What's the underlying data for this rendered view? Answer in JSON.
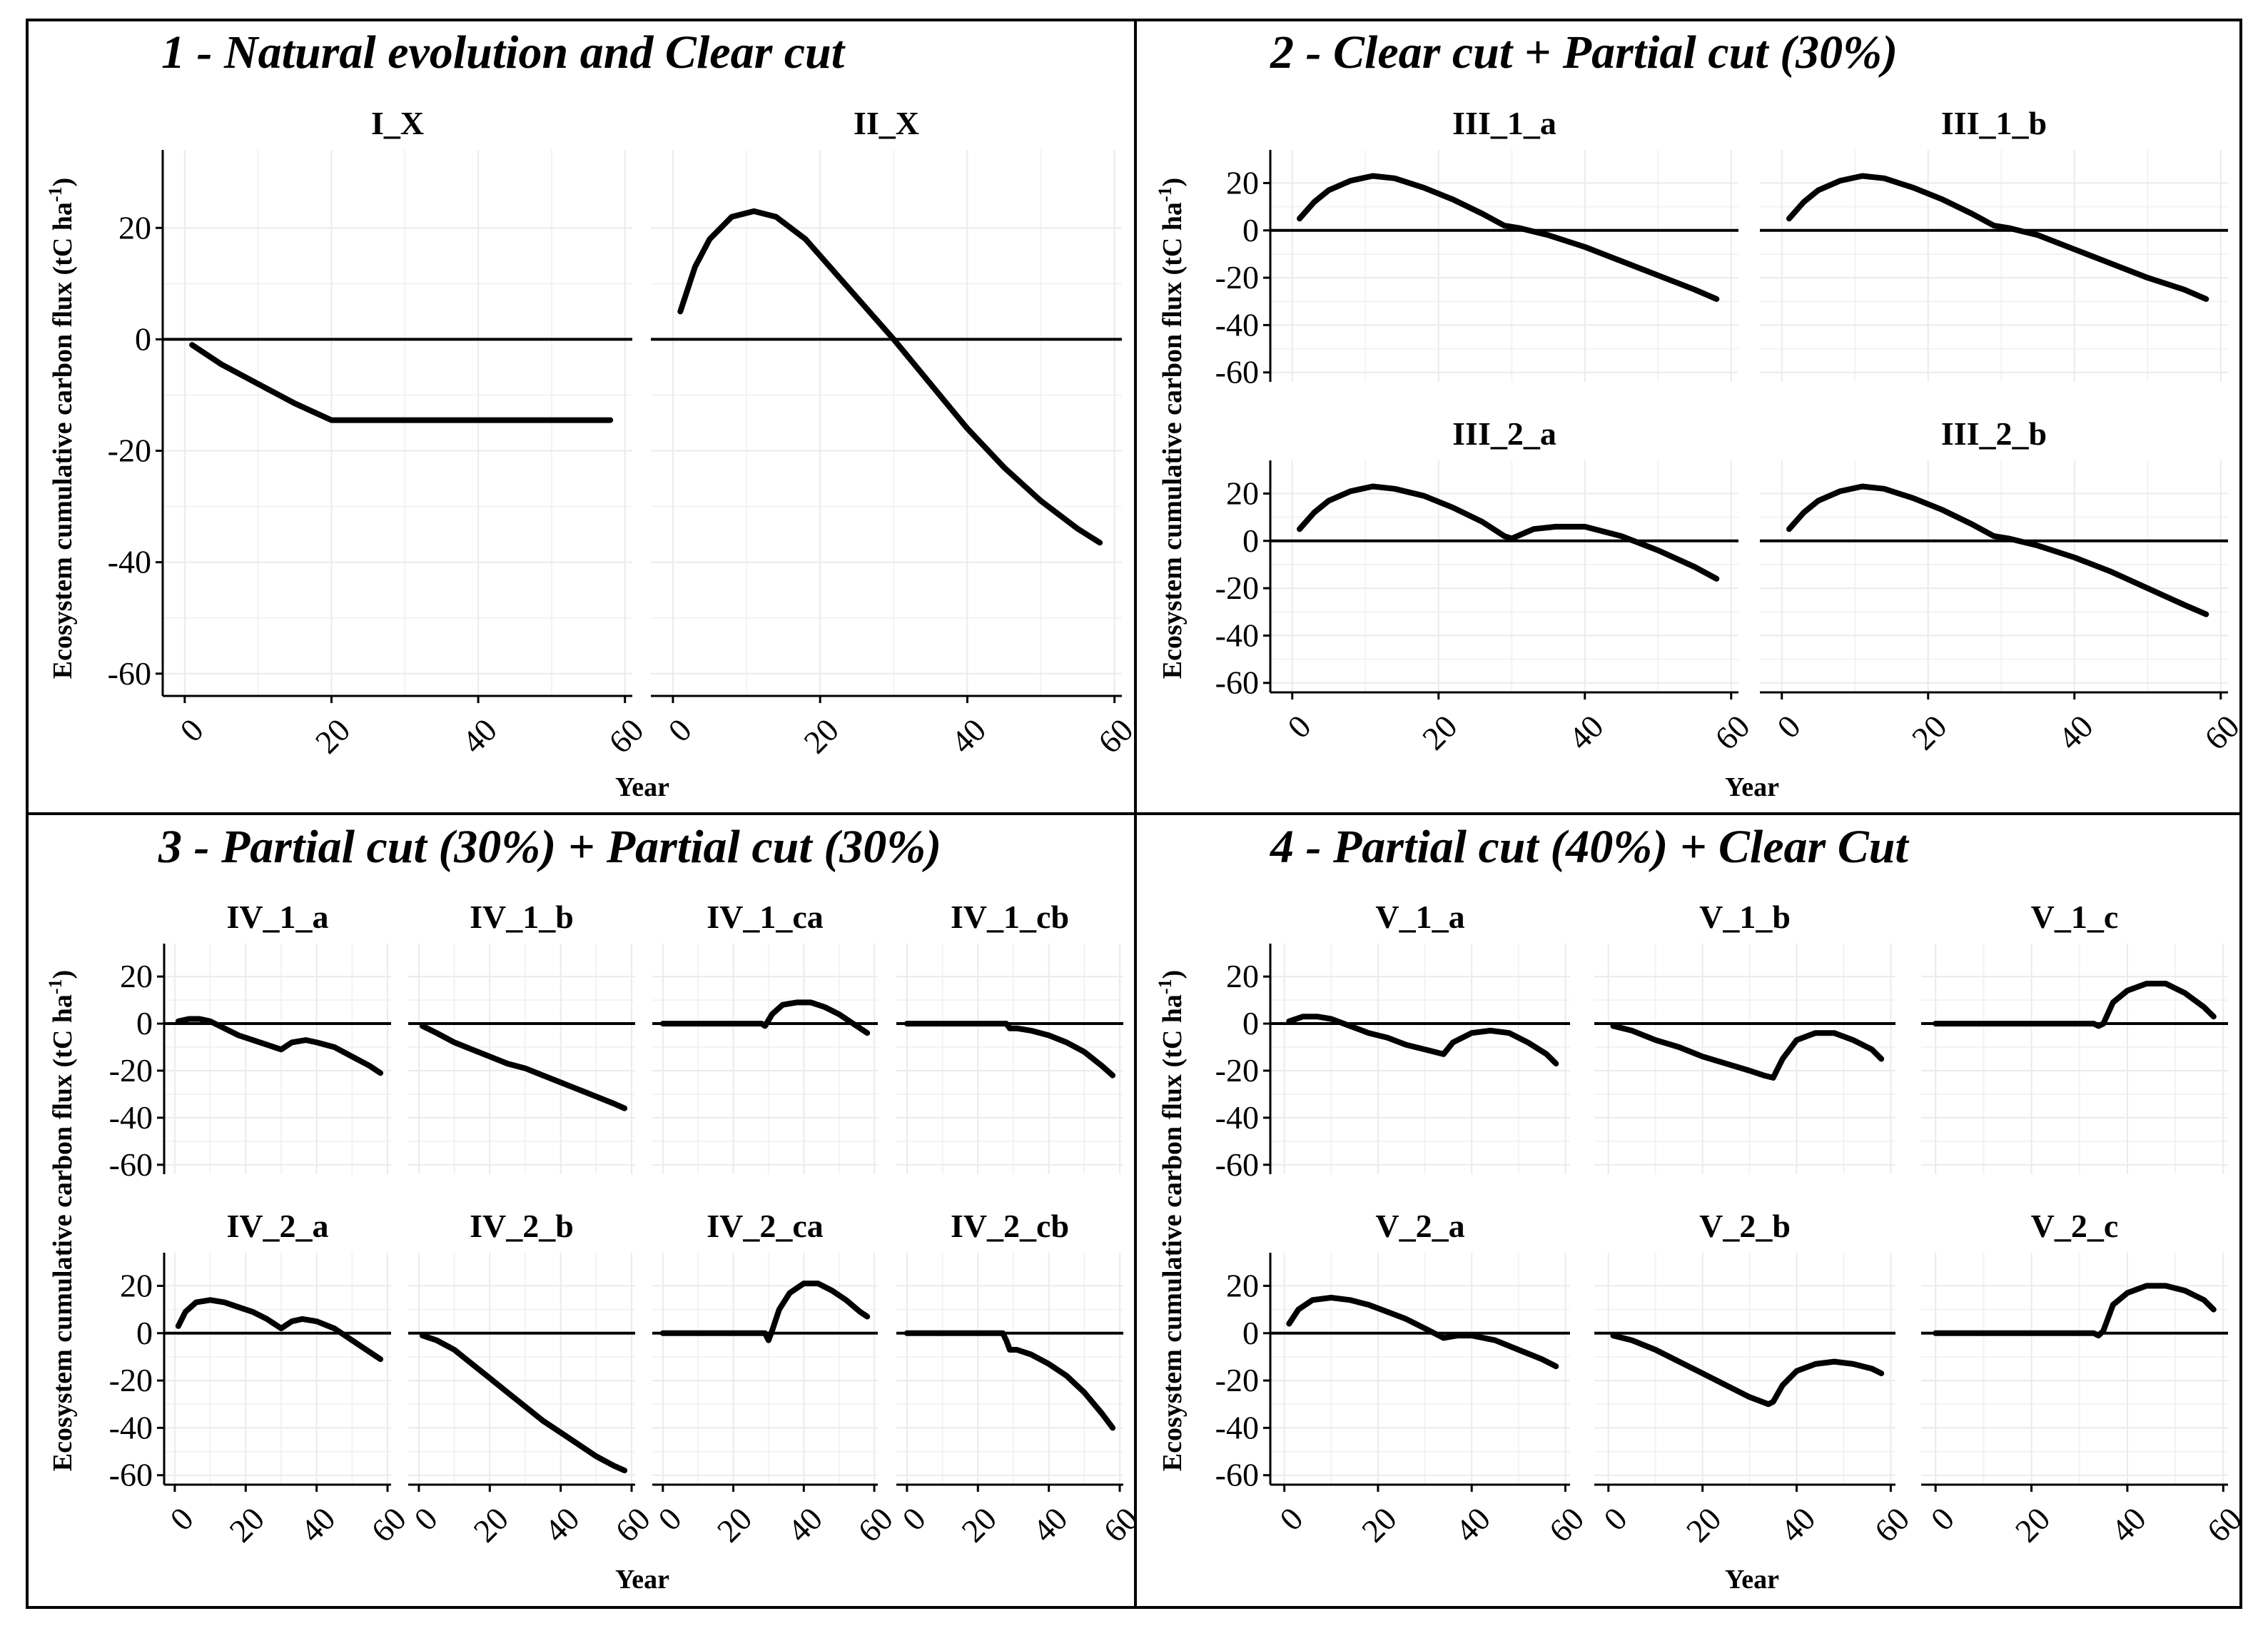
{
  "chart_data": {
    "type": "line",
    "y_axis_label": "Ecosystem cumulative carbon flux (tC ha",
    "y_axis_label_sup": "-1",
    "y_axis_label_end": ")",
    "x_axis_label": "Year",
    "x_ticks": [
      0,
      20,
      40,
      60
    ],
    "y_ticks": [
      20,
      0,
      -20,
      -40,
      -60
    ],
    "xlim": [
      -3,
      61
    ],
    "ylim": [
      -64,
      34
    ],
    "quadrants": [
      {
        "title": "1 - Natural evolution and Clear cut",
        "panels": [
          {
            "name": "I_X",
            "x": [
              1,
              5,
              10,
              15,
              20,
              25,
              30,
              40,
              50,
              58
            ],
            "y": [
              -1,
              -4.5,
              -8,
              -11.5,
              -14.5,
              -14.5,
              -14.5,
              -14.5,
              -14.5,
              -14.5
            ]
          },
          {
            "name": "II_X",
            "x": [
              1,
              3,
              5,
              8,
              11,
              14,
              18,
              22,
              26,
              30,
              35,
              40,
              45,
              50,
              55,
              58
            ],
            "y": [
              5,
              13,
              18,
              22,
              23,
              22,
              18,
              12,
              6,
              0,
              -8,
              -16,
              -23,
              -29,
              -34,
              -36.5
            ]
          }
        ]
      },
      {
        "title": "2 - Clear cut + Partial cut (30%)",
        "panels": [
          {
            "name": "III_1_a",
            "x": [
              1,
              3,
              5,
              8,
              11,
              14,
              18,
              22,
              26,
              29,
              31,
              35,
              40,
              45,
              50,
              55,
              58
            ],
            "y": [
              5,
              12,
              17,
              21,
              23,
              22,
              18,
              13,
              7,
              2,
              1,
              -2,
              -7,
              -13,
              -19,
              -25,
              -29
            ]
          },
          {
            "name": "III_1_b",
            "x": [
              1,
              3,
              5,
              8,
              11,
              14,
              18,
              22,
              26,
              29,
              31,
              35,
              40,
              45,
              50,
              55,
              58
            ],
            "y": [
              5,
              12,
              17,
              21,
              23,
              22,
              18,
              13,
              7,
              2,
              1,
              -2,
              -8,
              -14,
              -20,
              -25,
              -29
            ]
          },
          {
            "name": "III_2_a",
            "x": [
              1,
              3,
              5,
              8,
              11,
              14,
              18,
              22,
              26,
              29,
              30,
              33,
              36,
              40,
              45,
              50,
              55,
              58
            ],
            "y": [
              5,
              12,
              17,
              21,
              23,
              22,
              19,
              14,
              8,
              2,
              1,
              5,
              6,
              6,
              2,
              -4,
              -11,
              -16
            ]
          },
          {
            "name": "III_2_b",
            "x": [
              1,
              3,
              5,
              8,
              11,
              14,
              18,
              22,
              26,
              29,
              31,
              35,
              40,
              45,
              50,
              55,
              58
            ],
            "y": [
              5,
              12,
              17,
              21,
              23,
              22,
              18,
              13,
              7,
              2,
              1,
              -2,
              -7,
              -13,
              -20,
              -27,
              -31
            ]
          }
        ]
      },
      {
        "title": "3 - Partial cut (30%) + Partial cut (30%)",
        "panels": [
          {
            "name": "IV_1_a",
            "x": [
              1,
              4,
              7,
              10,
              14,
              18,
              22,
              26,
              30,
              33,
              37,
              40,
              45,
              50,
              55,
              58
            ],
            "y": [
              1,
              2,
              2,
              1,
              -2,
              -5,
              -7,
              -9,
              -11,
              -8,
              -7,
              -8,
              -10,
              -14,
              -18,
              -21
            ]
          },
          {
            "name": "IV_1_b",
            "x": [
              1,
              5,
              10,
              15,
              20,
              25,
              30,
              35,
              40,
              45,
              50,
              55,
              58
            ],
            "y": [
              -1,
              -4,
              -8,
              -11,
              -14,
              -17,
              -19,
              -22,
              -25,
              -28,
              -31,
              -34,
              -36
            ]
          },
          {
            "name": "IV_1_ca",
            "x": [
              0,
              10,
              20,
              28,
              29,
              31,
              34,
              38,
              42,
              46,
              50,
              54,
              58
            ],
            "y": [
              0,
              0,
              0,
              0,
              -1,
              4,
              8,
              9,
              9,
              7,
              4,
              0,
              -4
            ]
          },
          {
            "name": "IV_1_cb",
            "x": [
              0,
              10,
              20,
              28,
              29,
              31,
              35,
              40,
              45,
              50,
              55,
              58
            ],
            "y": [
              0,
              0,
              0,
              0,
              -2,
              -2,
              -3,
              -5,
              -8,
              -12,
              -18,
              -22
            ]
          },
          {
            "name": "IV_2_a",
            "x": [
              1,
              3,
              6,
              10,
              14,
              18,
              22,
              26,
              30,
              33,
              36,
              40,
              45,
              50,
              55,
              58
            ],
            "y": [
              3,
              9,
              13,
              14,
              13,
              11,
              9,
              6,
              2,
              5,
              6,
              5,
              2,
              -3,
              -8,
              -11
            ]
          },
          {
            "name": "IV_2_b",
            "x": [
              1,
              5,
              10,
              15,
              20,
              25,
              30,
              35,
              40,
              45,
              50,
              55,
              58
            ],
            "y": [
              -1,
              -3,
              -7,
              -13,
              -19,
              -25,
              -31,
              -37,
              -42,
              -47,
              -52,
              -56,
              -58
            ]
          },
          {
            "name": "IV_2_ca",
            "x": [
              0,
              10,
              20,
              29,
              30,
              31,
              33,
              36,
              40,
              44,
              48,
              52,
              56,
              58
            ],
            "y": [
              0,
              0,
              0,
              0,
              -3,
              1,
              10,
              17,
              21,
              21,
              18,
              14,
              9,
              7
            ]
          },
          {
            "name": "IV_2_cb",
            "x": [
              0,
              10,
              20,
              27,
              28,
              29,
              31,
              35,
              40,
              45,
              50,
              55,
              58
            ],
            "y": [
              0,
              0,
              0,
              0,
              -3,
              -7,
              -7,
              -9,
              -13,
              -18,
              -25,
              -34,
              -40
            ]
          }
        ]
      },
      {
        "title": "4 - Partial cut (40%) + Clear Cut",
        "panels": [
          {
            "name": "V_1_a",
            "x": [
              1,
              4,
              7,
              10,
              14,
              18,
              22,
              26,
              30,
              34,
              36,
              40,
              44,
              48,
              52,
              56,
              58
            ],
            "y": [
              1,
              3,
              3,
              2,
              -1,
              -4,
              -6,
              -9,
              -11,
              -13,
              -8,
              -4,
              -3,
              -4,
              -8,
              -13,
              -17
            ]
          },
          {
            "name": "V_1_b",
            "x": [
              1,
              5,
              10,
              15,
              20,
              25,
              30,
              33,
              35,
              37,
              40,
              44,
              48,
              52,
              56,
              58
            ],
            "y": [
              -1,
              -3,
              -7,
              -10,
              -14,
              -17,
              -20,
              -22,
              -23,
              -15,
              -7,
              -4,
              -4,
              -7,
              -11,
              -15
            ]
          },
          {
            "name": "V_1_c",
            "x": [
              0,
              10,
              20,
              33,
              34,
              35,
              37,
              40,
              44,
              48,
              52,
              56,
              58
            ],
            "y": [
              0,
              0,
              0,
              0,
              -1,
              0,
              9,
              14,
              17,
              17,
              13,
              7,
              3
            ]
          },
          {
            "name": "V_2_a",
            "x": [
              1,
              3,
              6,
              10,
              14,
              18,
              22,
              26,
              30,
              34,
              37,
              40,
              45,
              50,
              55,
              58
            ],
            "y": [
              4,
              10,
              14,
              15,
              14,
              12,
              9,
              6,
              2,
              -2,
              -1,
              -1,
              -3,
              -7,
              -11,
              -14
            ]
          },
          {
            "name": "V_2_b",
            "x": [
              1,
              5,
              10,
              15,
              20,
              25,
              30,
              34,
              35,
              37,
              40,
              44,
              48,
              52,
              56,
              58
            ],
            "y": [
              -1,
              -3,
              -7,
              -12,
              -17,
              -22,
              -27,
              -30,
              -29,
              -22,
              -16,
              -13,
              -12,
              -13,
              -15,
              -17
            ]
          },
          {
            "name": "V_2_c",
            "x": [
              0,
              10,
              20,
              33,
              34,
              35,
              37,
              40,
              44,
              48,
              52,
              56,
              58
            ],
            "y": [
              0,
              0,
              0,
              0,
              -1,
              1,
              12,
              17,
              20,
              20,
              18,
              14,
              10
            ]
          }
        ]
      }
    ]
  }
}
